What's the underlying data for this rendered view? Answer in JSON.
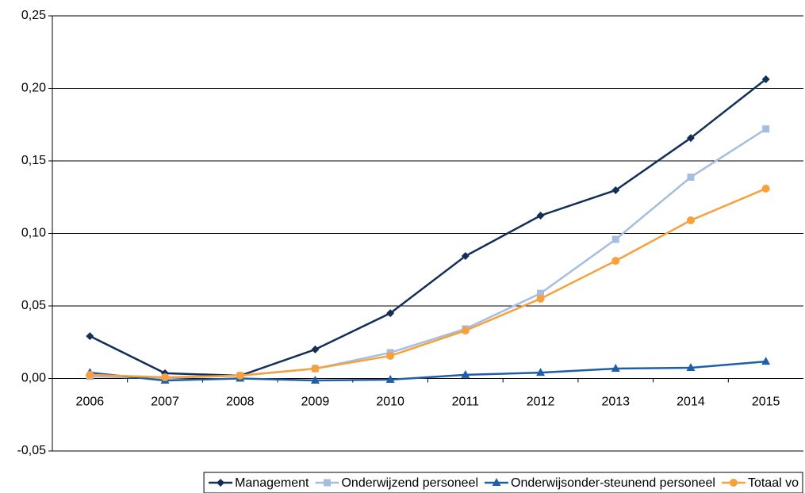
{
  "chart_data": {
    "type": "line",
    "categories": [
      "2006",
      "2007",
      "2008",
      "2009",
      "2010",
      "2011",
      "2012",
      "2013",
      "2014",
      "2015"
    ],
    "series": [
      {
        "name": "Management",
        "color": "#132f57",
        "marker": "diamond",
        "values": [
          0.0292,
          0.0036,
          0.0019,
          0.02,
          0.045,
          0.0844,
          0.1123,
          0.1298,
          0.1658,
          0.2063
        ]
      },
      {
        "name": "Onderwijzend personeel",
        "color": "#a6bddf",
        "marker": "square",
        "values": [
          0.0014,
          0.0003,
          0.002,
          0.0068,
          0.0178,
          0.0342,
          0.0587,
          0.0959,
          0.1388,
          0.172
        ]
      },
      {
        "name": "Onderwijsonder-steunend personeel",
        "color": "#1f5fa8",
        "marker": "triangle",
        "values": [
          0.004,
          -0.0014,
          0,
          -0.0014,
          -0.0008,
          0.0025,
          0.004,
          0.0068,
          0.0074,
          0.0117
        ]
      },
      {
        "name": "Totaal vo",
        "color": "#f7a03c",
        "marker": "circle",
        "values": [
          0.0025,
          0.0008,
          0.002,
          0.0068,
          0.0156,
          0.033,
          0.055,
          0.0811,
          0.109,
          0.1309
        ]
      }
    ],
    "ylim": [
      -0.05,
      0.25
    ],
    "yticks": [
      {
        "value": -0.05,
        "label": "-0,05"
      },
      {
        "value": 0,
        "label": "0,00"
      },
      {
        "value": 0.05,
        "label": "0,05"
      },
      {
        "value": 0.1,
        "label": "0,10"
      },
      {
        "value": 0.15,
        "label": "0,15"
      },
      {
        "value": 0.2,
        "label": "0,20"
      },
      {
        "value": 0.25,
        "label": "0,25"
      }
    ],
    "grid": true,
    "legend": "bottom"
  }
}
